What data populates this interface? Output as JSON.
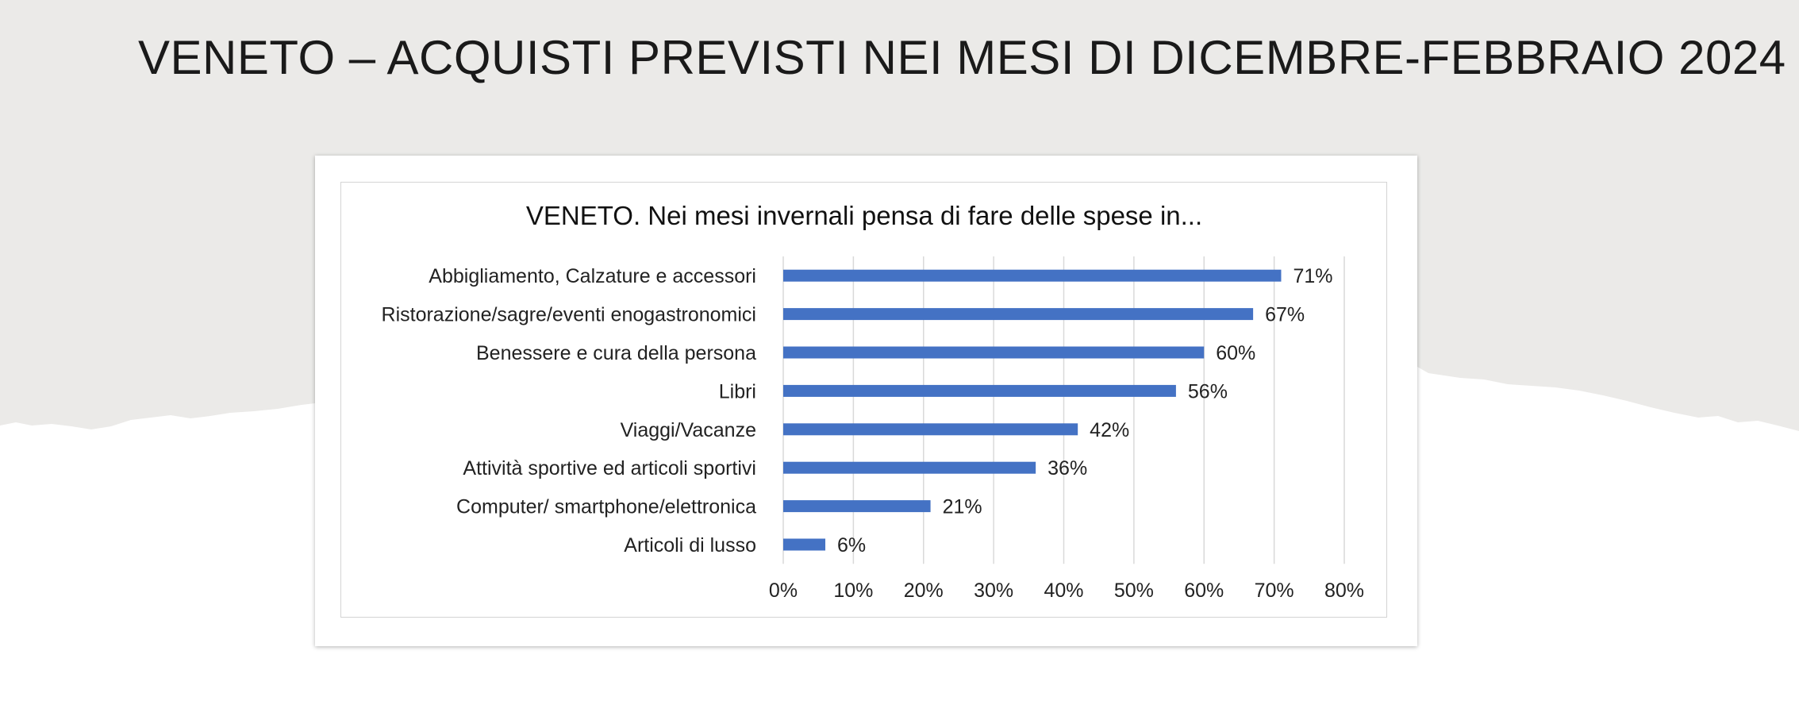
{
  "slide": {
    "title": "VENETO – ACQUISTI PREVISTI NEI MESI DI DICEMBRE-FEBBRAIO 2024",
    "background_color": "#ebeae8"
  },
  "chart_data": {
    "type": "bar",
    "orientation": "horizontal",
    "title": "VENETO. Nei mesi invernali pensa di fare delle spese in...",
    "xlabel": "",
    "ylabel": "",
    "categories": [
      "Abbigliamento, Calzature e accessori",
      "Ristorazione/sagre/eventi enogastronomici",
      "Benessere e cura della persona",
      "Libri",
      "Viaggi/Vacanze",
      "Attività sportive ed articoli sportivi",
      "Computer/ smartphone/elettronica",
      "Articoli di lusso"
    ],
    "values": [
      71,
      67,
      60,
      56,
      42,
      36,
      21,
      6
    ],
    "data_labels": [
      "71%",
      "67%",
      "60%",
      "56%",
      "42%",
      "36%",
      "21%",
      "6%"
    ],
    "xlim": [
      0,
      80
    ],
    "x_ticks": [
      0,
      10,
      20,
      30,
      40,
      50,
      60,
      70,
      80
    ],
    "x_tick_labels": [
      "0%",
      "10%",
      "20%",
      "30%",
      "40%",
      "50%",
      "60%",
      "70%",
      "80%"
    ],
    "grid": "vertical",
    "legend": "none",
    "bar_color": "#4472c4"
  }
}
